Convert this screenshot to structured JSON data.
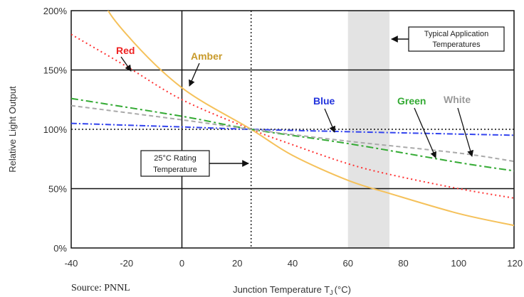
{
  "source": "Source: PNNL",
  "chart_data": {
    "type": "line",
    "xlabel": "Junction Temperature T",
    "xlabel_sub": "J",
    "xlabel_unit": "(°C)",
    "ylabel": "Relative Light Output",
    "xlim": [
      -40,
      120
    ],
    "ylim": [
      0,
      200
    ],
    "x_ticks": [
      -40,
      -20,
      0,
      20,
      40,
      60,
      80,
      100,
      120
    ],
    "x_tick_labels": [
      "-40",
      "-20",
      "0",
      "20",
      "40",
      "60",
      "80",
      "100",
      "120"
    ],
    "y_ticks": [
      0,
      50,
      100,
      150,
      200
    ],
    "y_tick_labels": [
      "0%",
      "50%",
      "100%",
      "150%",
      "200%"
    ],
    "h_ref_lines": [
      50,
      150
    ],
    "v_ref_line": 0,
    "rating_line": {
      "x": 25,
      "y": 100
    },
    "shaded_region": [
      60,
      75
    ],
    "annotations": {
      "typical": {
        "line1": "Typical Application",
        "line2": "Temperatures"
      },
      "rating": {
        "line1": "25°C Rating",
        "line2": "Temperature"
      }
    },
    "series": [
      {
        "name": "Red",
        "color": "#ff3333",
        "dash": "2,4",
        "x": [
          -40,
          -20,
          0,
          25,
          40,
          60,
          75,
          100,
          120
        ],
        "y": [
          180,
          153,
          125,
          100,
          87,
          71,
          62,
          50,
          42
        ]
      },
      {
        "name": "Amber",
        "color": "#f5c15a",
        "dash": "",
        "x": [
          -40,
          -30,
          -20,
          0,
          25,
          40,
          60,
          75,
          100,
          120
        ],
        "y": [
          280,
          215,
          180,
          135,
          100,
          78,
          57,
          46,
          29,
          19
        ]
      },
      {
        "name": "Blue",
        "color": "#3344ee",
        "dash": "8,3,2,3",
        "x": [
          -40,
          0,
          25,
          60,
          120
        ],
        "y": [
          105,
          102,
          100,
          98,
          95
        ]
      },
      {
        "name": "Green",
        "color": "#33aa33",
        "dash": "10,4,3,4",
        "x": [
          -40,
          0,
          25,
          60,
          100,
          120
        ],
        "y": [
          126,
          111,
          100,
          88,
          72,
          65
        ]
      },
      {
        "name": "White",
        "color": "#aaaaaa",
        "dash": "6,4",
        "x": [
          -40,
          0,
          25,
          60,
          100,
          120
        ],
        "y": [
          120,
          108,
          100,
          90,
          80,
          73
        ]
      }
    ],
    "series_label_colors": {
      "Red": "#ee2222",
      "Amber": "#c89a2a",
      "Blue": "#2233dd",
      "Green": "#33aa33",
      "White": "#999999"
    }
  }
}
